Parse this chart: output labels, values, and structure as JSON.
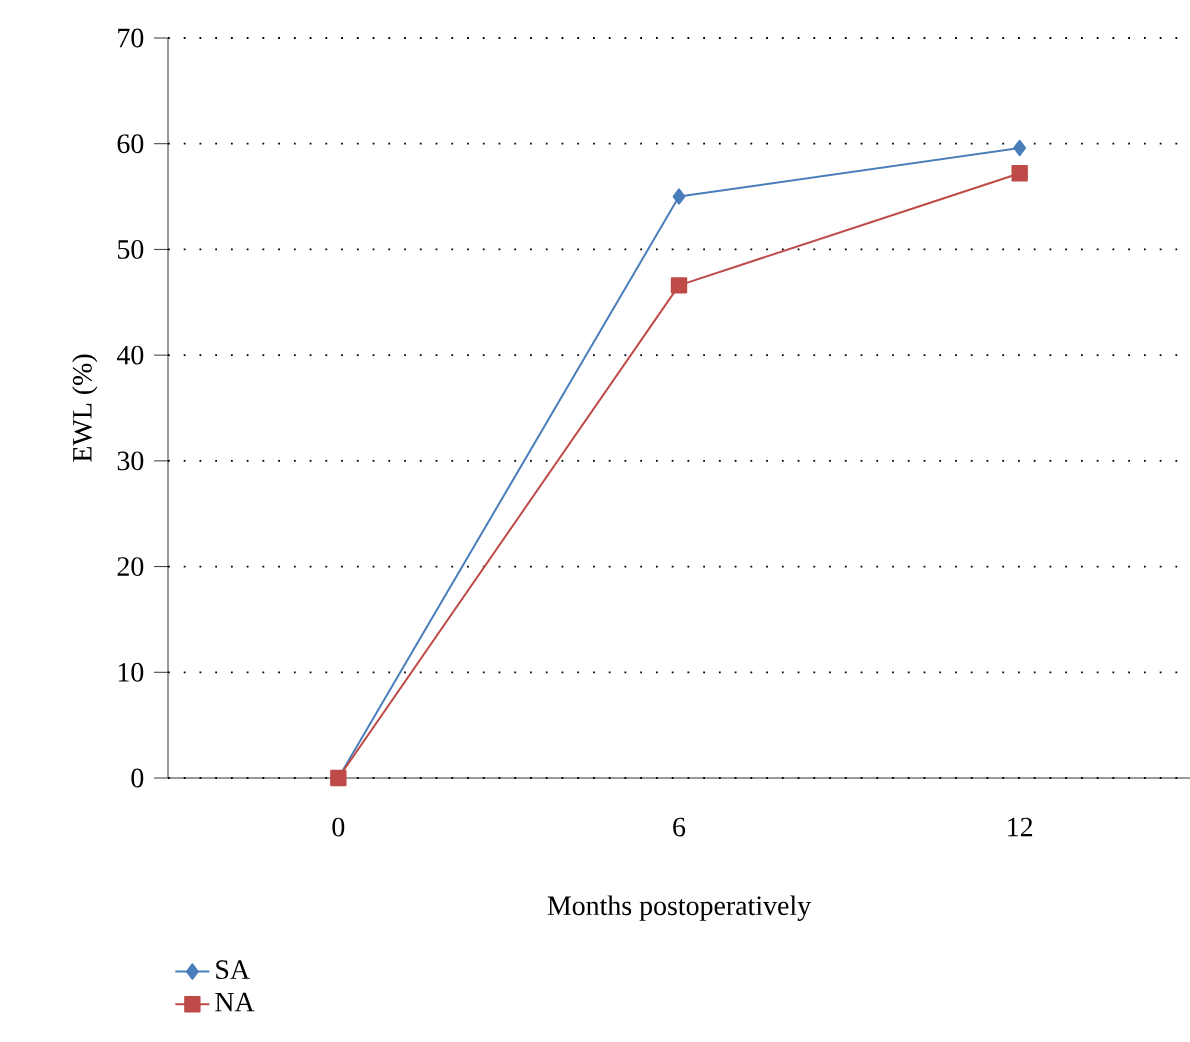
{
  "chart_data": {
    "type": "line",
    "xlabel": "Months postoperatively",
    "ylabel": "EWL (%)",
    "categories": [
      "0",
      "6",
      "12"
    ],
    "series": [
      {
        "name": "SA",
        "color": "#4a7ebb",
        "marker": "diamond",
        "values": [
          0,
          55.0,
          59.6
        ]
      },
      {
        "name": "NA",
        "color": "#be4b48",
        "marker": "square",
        "values": [
          0,
          46.6,
          57.2
        ]
      }
    ],
    "ylim": [
      0,
      70
    ],
    "yticks": [
      0,
      10,
      20,
      30,
      40,
      50,
      60,
      70
    ],
    "grid": "y",
    "legend": "bottom left",
    "line_style": "solid"
  }
}
